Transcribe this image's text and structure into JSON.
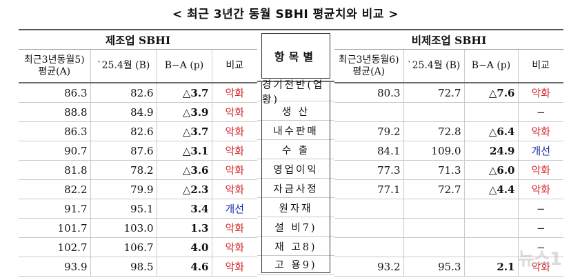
{
  "title": "< 최근 3년간 동월 SBHI 평균치와 비교 >",
  "left": {
    "group_label": "제조업 SBHI",
    "headers": [
      "최근3년동월5) 평균(A)",
      "`25.4월 (B)",
      "B−A (p)",
      "비교"
    ],
    "rows": [
      [
        "86.3",
        "82.6",
        "△3.7",
        "악화"
      ],
      [
        "88.8",
        "84.9",
        "△3.9",
        "악화"
      ],
      [
        "86.3",
        "82.6",
        "△3.7",
        "악화"
      ],
      [
        "90.7",
        "87.6",
        "△3.1",
        "악화"
      ],
      [
        "81.8",
        "78.2",
        "△3.6",
        "악화"
      ],
      [
        "82.2",
        "79.9",
        "△2.3",
        "악화"
      ],
      [
        "91.7",
        "95.1",
        "3.4",
        "개선"
      ],
      [
        "101.7",
        "103.0",
        "1.3",
        "악화"
      ],
      [
        "102.7",
        "106.7",
        "4.0",
        "악화"
      ],
      [
        "93.9",
        "98.5",
        "4.6",
        "악화"
      ]
    ]
  },
  "middle": {
    "header": "항목별",
    "items": [
      "경기전반(업황)",
      "생 산",
      "내수판매",
      "수 출",
      "영업이익",
      "자금사정",
      "원자재",
      "설 비7)",
      "재 고8)",
      "고 용9)"
    ]
  },
  "right": {
    "group_label": "비제조업 SBHI",
    "headers": [
      "최근3년동월6) 평균(A)",
      "`25.4월 (B)",
      "B−A (p)",
      "비교"
    ],
    "rows": [
      [
        "80.3",
        "72.7",
        "△7.6",
        "악화"
      ],
      [
        "",
        "",
        "",
        "−"
      ],
      [
        "79.2",
        "72.8",
        "△6.4",
        "악화"
      ],
      [
        "84.1",
        "109.0",
        "24.9",
        "개선"
      ],
      [
        "77.3",
        "71.3",
        "△6.0",
        "악화"
      ],
      [
        "77.1",
        "72.7",
        "△4.4",
        "악화"
      ],
      [
        "",
        "",
        "",
        "−"
      ],
      [
        "",
        "",
        "",
        "−"
      ],
      [
        "",
        "",
        "",
        "−"
      ],
      [
        "93.2",
        "95.3",
        "2.1",
        "악화"
      ]
    ]
  },
  "watermark": "뉴스1",
  "colors": {
    "worse": "#d6282d",
    "better": "#1e2fb0",
    "rule": "#555555",
    "grid": "#c9c9c9"
  }
}
